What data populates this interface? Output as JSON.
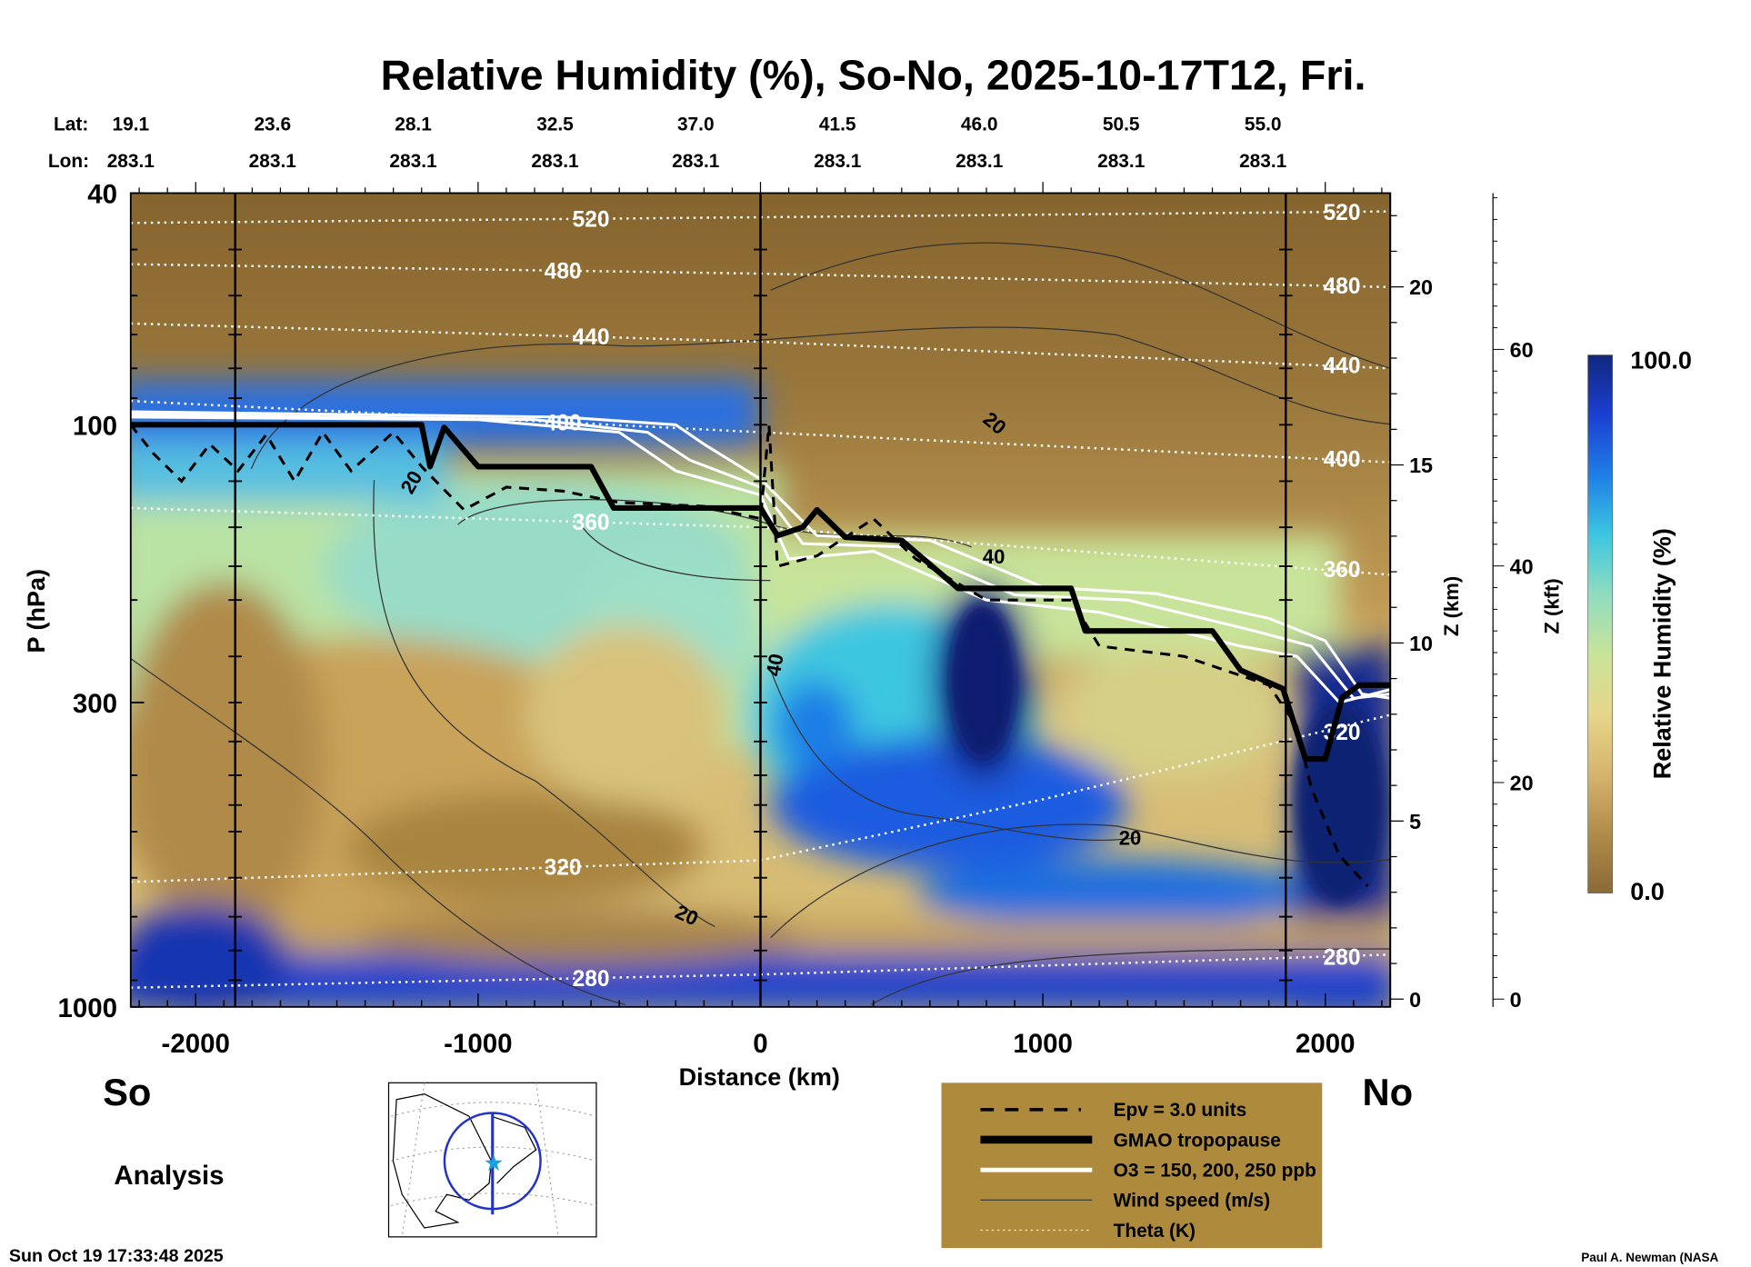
{
  "chart_data": {
    "type": "heatmap",
    "title": "Relative Humidity (%), So-No, 2025-10-17T12, Fri.",
    "xlabel": "Distance (km)",
    "ylabel": "P (hPa)",
    "ylabel_right1": "Z (km)",
    "ylabel_right2": "Z (kft)",
    "xlim": [
      -2230,
      2230
    ],
    "ylim": [
      1000,
      40
    ],
    "yscale": "log",
    "x_ticks": [
      -2000,
      -1000,
      0,
      1000,
      2000
    ],
    "y_ticks": [
      40,
      100,
      300,
      1000
    ],
    "z_km_ticks": [
      0,
      5,
      10,
      15,
      20
    ],
    "z_kft_ticks": [
      0,
      20,
      40,
      60
    ],
    "lat_label": "Lat:",
    "lon_label": "Lon:",
    "lats": [
      "19.1",
      "23.6",
      "28.1",
      "32.5",
      "37.0",
      "41.5",
      "46.0",
      "50.5",
      "55.0"
    ],
    "lons": [
      "283.1",
      "283.1",
      "283.1",
      "283.1",
      "283.1",
      "283.1",
      "283.1",
      "283.1",
      "283.1"
    ],
    "colorbar": {
      "label": "Relative Humidity (%)",
      "min": "0.0",
      "max": "100.0",
      "colors": [
        "#8a6a36",
        "#b08c4a",
        "#d6b56c",
        "#e6d68a",
        "#c8e49a",
        "#8fdcc0",
        "#3cc6e0",
        "#1f7de6",
        "#1b3fd0",
        "#11277e"
      ]
    },
    "tropopause": [
      [
        -2230,
        100
      ],
      [
        -1200,
        100
      ],
      [
        -1170,
        118
      ],
      [
        -1120,
        101
      ],
      [
        -1000,
        118
      ],
      [
        -600,
        118
      ],
      [
        -520,
        139
      ],
      [
        0,
        139
      ],
      [
        60,
        155
      ],
      [
        150,
        150
      ],
      [
        200,
        140
      ],
      [
        300,
        156
      ],
      [
        500,
        158
      ],
      [
        700,
        191
      ],
      [
        1100,
        191
      ],
      [
        1150,
        226
      ],
      [
        1600,
        226
      ],
      [
        1700,
        264
      ],
      [
        1850,
        284
      ],
      [
        1930,
        375
      ],
      [
        2000,
        375
      ],
      [
        2060,
        294
      ],
      [
        2120,
        280
      ],
      [
        2230,
        280
      ]
    ],
    "epv_line": [
      [
        -2230,
        100
      ],
      [
        -2150,
        112
      ],
      [
        -2050,
        125
      ],
      [
        -1950,
        108
      ],
      [
        -1850,
        120
      ],
      [
        -1750,
        104
      ],
      [
        -1650,
        125
      ],
      [
        -1550,
        103
      ],
      [
        -1450,
        120
      ],
      [
        -1300,
        103
      ],
      [
        -1200,
        118
      ],
      [
        -1050,
        140
      ],
      [
        -900,
        128
      ],
      [
        -700,
        130
      ],
      [
        -500,
        136
      ],
      [
        -200,
        138
      ],
      [
        0,
        145
      ],
      [
        30,
        100
      ],
      [
        60,
        175
      ],
      [
        200,
        168
      ],
      [
        400,
        145
      ],
      [
        550,
        170
      ],
      [
        800,
        200
      ],
      [
        1100,
        200
      ],
      [
        1200,
        240
      ],
      [
        1500,
        250
      ],
      [
        1800,
        280
      ],
      [
        1900,
        330
      ],
      [
        1950,
        420
      ],
      [
        2050,
        550
      ],
      [
        2150,
        620
      ]
    ],
    "ozone_lines": [
      [
        [
          -2230,
          97
        ],
        [
          -1000,
          98
        ],
        [
          -500,
          103
        ],
        [
          -300,
          120
        ],
        [
          0,
          132
        ],
        [
          100,
          170
        ],
        [
          400,
          165
        ],
        [
          800,
          200
        ],
        [
          1200,
          210
        ],
        [
          1700,
          240
        ],
        [
          1900,
          250
        ],
        [
          2050,
          300
        ],
        [
          2230,
          285
        ]
      ],
      [
        [
          -2230,
          96
        ],
        [
          -800,
          98
        ],
        [
          -400,
          103
        ],
        [
          -250,
          115
        ],
        [
          0,
          128
        ],
        [
          150,
          160
        ],
        [
          500,
          162
        ],
        [
          900,
          196
        ],
        [
          1300,
          200
        ],
        [
          1750,
          226
        ],
        [
          1950,
          240
        ],
        [
          2100,
          295
        ],
        [
          2230,
          290
        ]
      ],
      [
        [
          -2230,
          95
        ],
        [
          -700,
          97
        ],
        [
          -300,
          100
        ],
        [
          -200,
          108
        ],
        [
          0,
          124
        ],
        [
          200,
          155
        ],
        [
          600,
          158
        ],
        [
          1000,
          190
        ],
        [
          1400,
          195
        ],
        [
          1800,
          215
        ],
        [
          2000,
          235
        ],
        [
          2130,
          290
        ],
        [
          2230,
          295
        ]
      ]
    ],
    "theta_lines": [
      {
        "value": "520",
        "points": [
          [
            -2230,
            45
          ],
          [
            0,
            44
          ],
          [
            2230,
            43
          ]
        ]
      },
      {
        "value": "480",
        "points": [
          [
            -2230,
            53
          ],
          [
            0,
            55
          ],
          [
            2230,
            58
          ]
        ]
      },
      {
        "value": "440",
        "points": [
          [
            -2230,
            67
          ],
          [
            0,
            72
          ],
          [
            2230,
            80
          ]
        ]
      },
      {
        "value": "400",
        "points": [
          [
            -2230,
            91
          ],
          [
            0,
            103
          ],
          [
            2230,
            116
          ]
        ]
      },
      {
        "value": "360",
        "points": [
          [
            -2230,
            139
          ],
          [
            0,
            150
          ],
          [
            2230,
            181
          ]
        ]
      },
      {
        "value": "320",
        "points": [
          [
            -2230,
            610
          ],
          [
            0,
            560
          ],
          [
            1000,
            440
          ],
          [
            2230,
            315
          ]
        ]
      },
      {
        "value": "280",
        "points": [
          [
            -2230,
            927
          ],
          [
            0,
            880
          ],
          [
            2230,
            813
          ]
        ]
      }
    ],
    "wind_labels": [
      "20",
      "20",
      "40",
      "40",
      "20",
      "20"
    ],
    "legend": [
      {
        "label": "Epv = 3.0 units",
        "style": "dashed"
      },
      {
        "label": "GMAO tropopause",
        "style": "thick"
      },
      {
        "label": "O3 = 150, 200, 250 ppb",
        "style": "white"
      },
      {
        "label": "Wind speed (m/s)",
        "style": "thin"
      },
      {
        "label": "Theta (K)",
        "style": "dotted"
      }
    ]
  },
  "labels": {
    "south": "So",
    "north": "No",
    "analysis": "Analysis",
    "timestamp": "Sun Oct 19 17:33:48 2025",
    "credit": "Paul A. Newman (NASA"
  }
}
